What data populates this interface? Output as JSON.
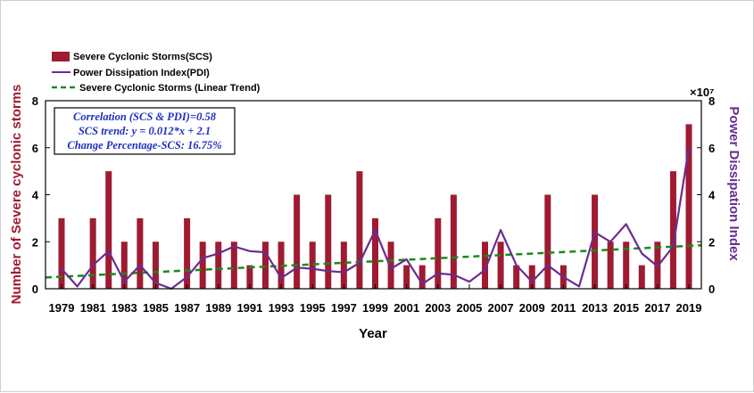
{
  "chart_data": {
    "type": "bar",
    "xlabel": "Year",
    "ylabel_left": "Number of Severe cyclonic storms",
    "ylabel_right": "Power Dissipation Index",
    "right_axis_exponent": "×10⁷",
    "ylim_left": [
      0,
      8
    ],
    "ylim_right": [
      0,
      8
    ],
    "yticks_left": [
      "0",
      "2",
      "4",
      "6",
      "8"
    ],
    "yticks_right": [
      "0",
      "2",
      "4",
      "6",
      "8"
    ],
    "xticks": [
      "1979",
      "1981",
      "1983",
      "1985",
      "1987",
      "1989",
      "1991",
      "1993",
      "1995",
      "1997",
      "1999",
      "2001",
      "2003",
      "2005",
      "2007",
      "2009",
      "2011",
      "2013",
      "2015",
      "2017",
      "2019"
    ],
    "years": [
      1979,
      1980,
      1981,
      1982,
      1983,
      1984,
      1985,
      1986,
      1987,
      1988,
      1989,
      1990,
      1991,
      1992,
      1993,
      1994,
      1995,
      1996,
      1997,
      1998,
      1999,
      2000,
      2001,
      2002,
      2003,
      2004,
      2005,
      2006,
      2007,
      2008,
      2009,
      2010,
      2011,
      2012,
      2013,
      2014,
      2015,
      2016,
      2017,
      2018,
      2019
    ],
    "series": [
      {
        "name": "Severe Cyclonic Storms(SCS)",
        "kind": "bar",
        "color": "#9e1b32",
        "values": [
          3,
          0,
          3,
          5,
          2,
          3,
          2,
          0,
          3,
          2,
          2,
          2,
          1,
          2,
          2,
          4,
          2,
          4,
          2,
          5,
          3,
          2,
          1,
          1,
          3,
          4,
          0,
          2,
          2,
          1,
          1,
          4,
          1,
          0,
          4,
          2,
          2,
          1,
          2,
          5,
          7
        ]
      },
      {
        "name": "Power Dissipation Index(PDI)",
        "kind": "line",
        "color": "#6a2c91",
        "values": [
          0.85,
          0.1,
          1.0,
          1.6,
          0.3,
          1.0,
          0.25,
          0.0,
          0.5,
          1.3,
          1.5,
          1.8,
          1.6,
          1.55,
          0.45,
          0.9,
          0.85,
          0.75,
          0.7,
          1.1,
          2.5,
          0.85,
          1.25,
          0.2,
          0.65,
          0.6,
          0.3,
          0.8,
          2.5,
          1.0,
          0.3,
          1.0,
          0.5,
          0.1,
          2.4,
          2.0,
          2.75,
          1.5,
          0.95,
          1.8,
          6.0
        ]
      },
      {
        "name": "Severe Cyclonic Storms (Linear Trend)",
        "kind": "trend",
        "color": "#1a8a1a",
        "intercept": 2.1,
        "slope": 0.012
      }
    ],
    "annotations": [
      "Correlation (SCS & PDI)=0.58",
      "SCS trend: y = 0.012*x + 2.1",
      "Change Percentage-SCS: 16.75%"
    ],
    "annotation_color": "#1f2fbf",
    "legend_position": "top-left (outside plot)"
  }
}
